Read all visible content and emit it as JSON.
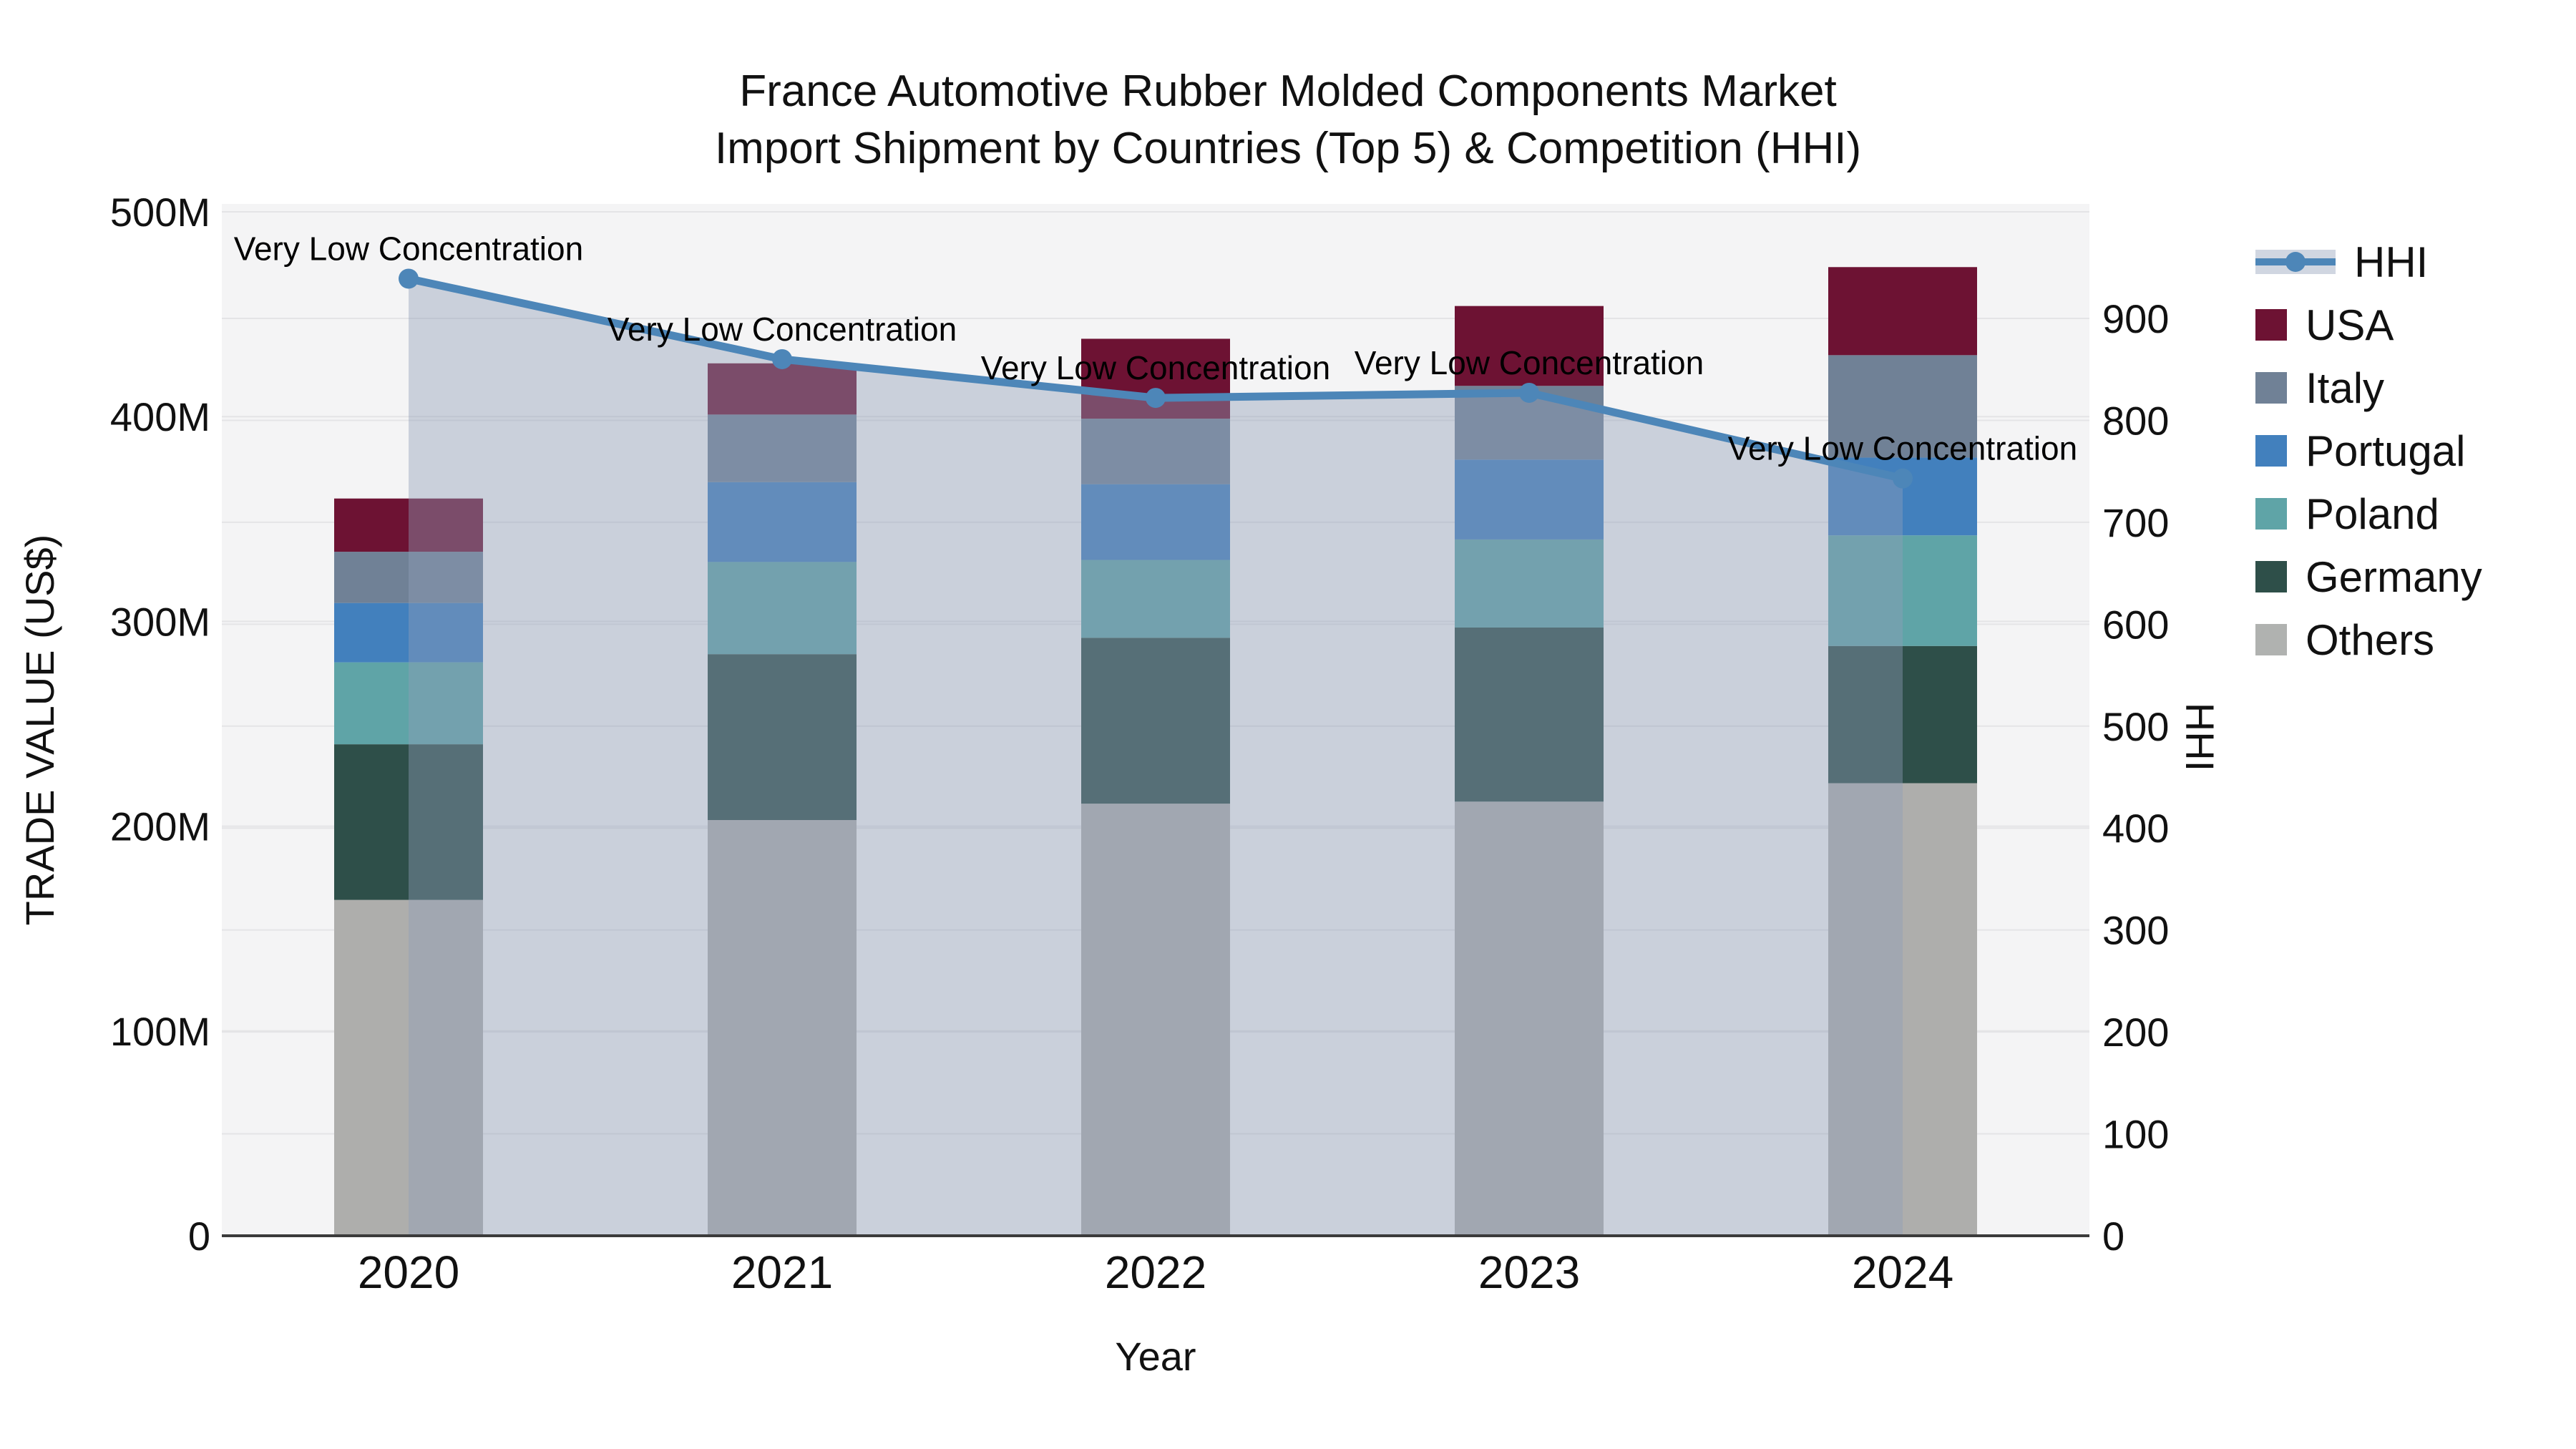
{
  "title": {
    "line1": "France Automotive Rubber Molded Components Market",
    "line2": "Import Shipment by Countries (Top 5) & Competition (HHI)"
  },
  "axes": {
    "left": {
      "title": "TRADE VALUE (US$)",
      "ticks": [
        {
          "label": "0",
          "value": 0
        },
        {
          "label": "100M",
          "value": 100
        },
        {
          "label": "200M",
          "value": 200
        },
        {
          "label": "300M",
          "value": 300
        },
        {
          "label": "400M",
          "value": 400
        },
        {
          "label": "500M",
          "value": 500
        }
      ]
    },
    "right": {
      "title": "HHI",
      "ticks": [
        {
          "label": "0",
          "value": 0
        },
        {
          "label": "100",
          "value": 100
        },
        {
          "label": "200",
          "value": 200
        },
        {
          "label": "300",
          "value": 300
        },
        {
          "label": "400",
          "value": 400
        },
        {
          "label": "500",
          "value": 500
        },
        {
          "label": "600",
          "value": 600
        },
        {
          "label": "700",
          "value": 700
        },
        {
          "label": "800",
          "value": 800
        },
        {
          "label": "900",
          "value": 900
        }
      ]
    },
    "x": {
      "title": "Year",
      "ticks": [
        "2020",
        "2021",
        "2022",
        "2023",
        "2024"
      ]
    }
  },
  "legend": {
    "items": [
      {
        "label": "HHI",
        "type": "line",
        "color": "#4d86b8"
      },
      {
        "label": "USA",
        "type": "swatch",
        "color": "#6d1233"
      },
      {
        "label": "Italy",
        "type": "swatch",
        "color": "#708196"
      },
      {
        "label": "Portugal",
        "type": "swatch",
        "color": "#4280bd"
      },
      {
        "label": "Poland",
        "type": "swatch",
        "color": "#5fa4a7"
      },
      {
        "label": "Germany",
        "type": "swatch",
        "color": "#2e4f49"
      },
      {
        "label": "Others",
        "type": "swatch",
        "color": "#b0b2b0"
      }
    ]
  },
  "chart_data": {
    "type": "bar",
    "subtype": "stacked-bars-with-line-area-overlay",
    "title": "France Automotive Rubber Molded Components Market — Import Shipment by Countries (Top 5) & Competition (HHI)",
    "categories": [
      "2020",
      "2021",
      "2022",
      "2023",
      "2024"
    ],
    "bar_value_unit": "Million US$ (left axis, TRADE VALUE)",
    "stack_order_bottom_to_top": [
      "Others",
      "Germany",
      "Poland",
      "Portugal",
      "Italy",
      "USA"
    ],
    "series": [
      {
        "name": "Others",
        "color": "#aeaeac",
        "values": [
          164,
          203,
          211,
          212,
          221
        ]
      },
      {
        "name": "Germany",
        "color": "#2e4f49",
        "values": [
          76,
          81,
          81,
          85,
          67
        ]
      },
      {
        "name": "Poland",
        "color": "#5fa4a7",
        "values": [
          40,
          45,
          38,
          43,
          54
        ]
      },
      {
        "name": "Portugal",
        "color": "#4280bd",
        "values": [
          29,
          39,
          37,
          39,
          38
        ]
      },
      {
        "name": "Italy",
        "color": "#708196",
        "values": [
          25,
          33,
          32,
          36,
          50
        ]
      },
      {
        "name": "USA",
        "color": "#6d1233",
        "values": [
          26,
          25,
          39,
          39,
          43
        ]
      }
    ],
    "bar_totals": [
      360,
      426,
      438,
      454,
      473
    ],
    "line_series": {
      "name": "HHI",
      "axis": "right",
      "color": "#4d86b8",
      "fill": "rgba(142,157,183,0.42)",
      "values": [
        939,
        860,
        822,
        827,
        743
      ]
    },
    "annotations": [
      {
        "x": "2020",
        "text": "Very Low Concentration"
      },
      {
        "x": "2021",
        "text": "Very Low Concentration"
      },
      {
        "x": "2022",
        "text": "Very Low Concentration"
      },
      {
        "x": "2023",
        "text": "Very Low Concentration"
      },
      {
        "x": "2024",
        "text": "Very Low Concentration"
      }
    ],
    "xlabel": "Year",
    "ylabel_left": "TRADE VALUE (US$)",
    "ylabel_right": "HHI",
    "ylim_left": [
      0,
      500
    ],
    "ylim_right": [
      0,
      900
    ],
    "grid": true,
    "legend_position": "right",
    "plot_background": "#f4f4f5",
    "gridline_color": "#e4e4e6",
    "axis_line_color": "#3b3b3b"
  }
}
